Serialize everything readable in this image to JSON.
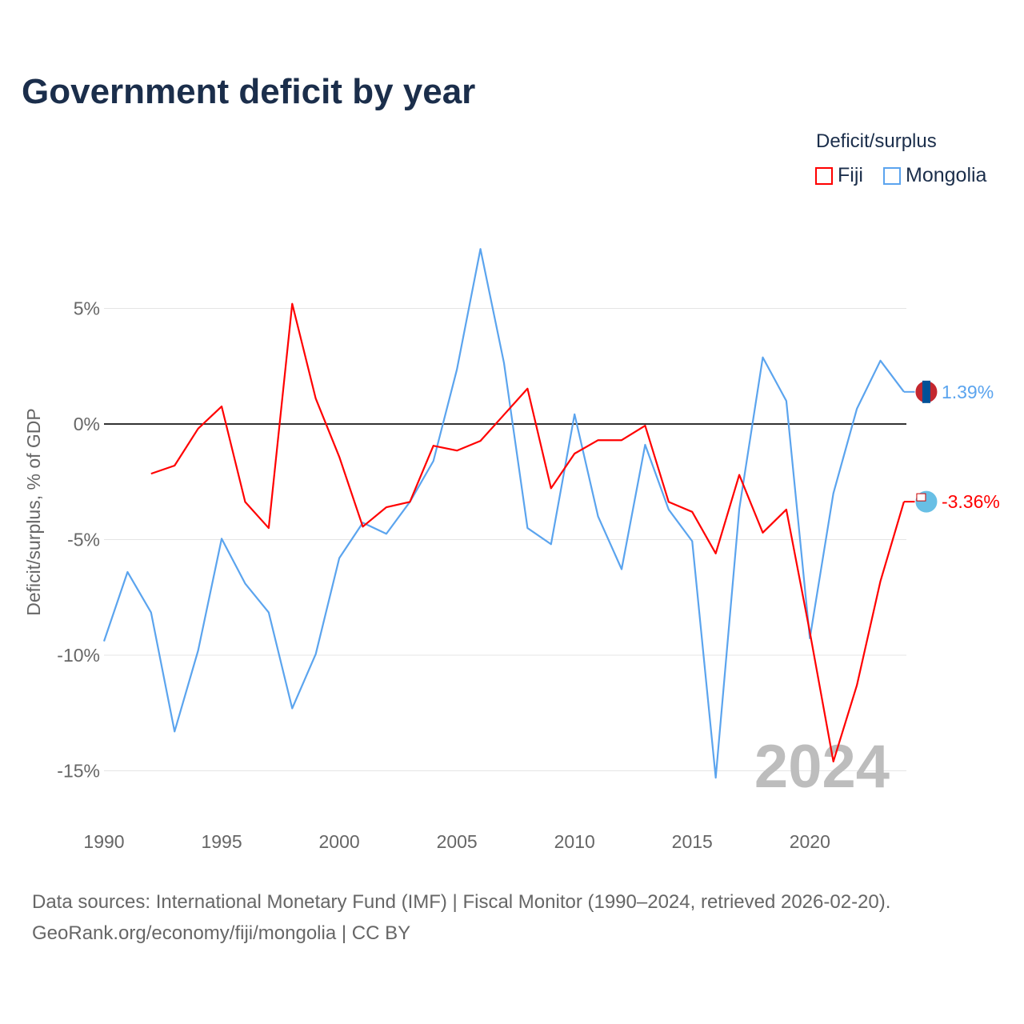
{
  "chart_data": {
    "type": "line",
    "title": "Government deficit by year",
    "ylabel": "Deficit/surplus, % of GDP",
    "xlabel": "",
    "ylim": [
      -17,
      8.5
    ],
    "xlim": [
      1990,
      2024
    ],
    "yticks": [
      5,
      0,
      -5,
      -10,
      -15
    ],
    "ytick_labels": [
      "5%",
      "0%",
      "-5%",
      "-10%",
      "-15%"
    ],
    "xticks": [
      1990,
      1995,
      2000,
      2005,
      2010,
      2015,
      2020
    ],
    "xtick_labels": [
      "1990",
      "1995",
      "2000",
      "2005",
      "2010",
      "2015",
      "2020"
    ],
    "legend_title": "Deficit/surplus",
    "legend_position": "top-right",
    "watermark_year": "2024",
    "series": [
      {
        "name": "Fiji",
        "color": "#ff0000",
        "end_label": "-3.36%",
        "x": [
          1992,
          1993,
          1994,
          1995,
          1996,
          1997,
          1998,
          1999,
          2000,
          2001,
          2002,
          2003,
          2004,
          2005,
          2006,
          2007,
          2008,
          2009,
          2010,
          2011,
          2012,
          2013,
          2014,
          2015,
          2016,
          2017,
          2018,
          2019,
          2020,
          2021,
          2022,
          2023,
          2024
        ],
        "values": [
          -2.15,
          -1.8,
          -0.2,
          0.76,
          -3.37,
          -4.5,
          5.2,
          1.1,
          -1.42,
          -4.44,
          -3.6,
          -3.37,
          -0.94,
          -1.15,
          -0.73,
          0.4,
          1.53,
          -2.78,
          -1.28,
          -0.7,
          -0.7,
          -0.07,
          -3.37,
          -3.8,
          -5.6,
          -2.2,
          -4.7,
          -3.7,
          -9.0,
          -14.6,
          -11.3,
          -6.8,
          -3.36
        ]
      },
      {
        "name": "Mongolia",
        "color": "#5ba4ee",
        "end_label": "1.39%",
        "x": [
          1990,
          1991,
          1992,
          1993,
          1994,
          1995,
          1996,
          1997,
          1998,
          1999,
          2000,
          2001,
          2002,
          2003,
          2004,
          2005,
          2006,
          2007,
          2008,
          2009,
          2010,
          2011,
          2012,
          2013,
          2014,
          2015,
          2016,
          2017,
          2018,
          2019,
          2020,
          2021,
          2022,
          2023,
          2024
        ],
        "values": [
          -9.4,
          -6.4,
          -8.15,
          -13.3,
          -9.8,
          -4.96,
          -6.9,
          -8.15,
          -12.3,
          -9.95,
          -5.8,
          -4.27,
          -4.75,
          -3.37,
          -1.6,
          2.36,
          7.57,
          2.64,
          -4.5,
          -5.2,
          0.42,
          -4.0,
          -6.28,
          -0.9,
          -3.7,
          -5.07,
          -15.3,
          -3.68,
          2.88,
          1.0,
          -9.27,
          -3.0,
          0.66,
          2.74,
          1.39
        ]
      }
    ]
  },
  "footer": {
    "source": "Data sources: International Monetary Fund (IMF) | Fiscal Monitor (1990–2024, retrieved 2026-02-20).",
    "credit": "GeoRank.org/economy/fiji/mongolia | CC BY"
  }
}
